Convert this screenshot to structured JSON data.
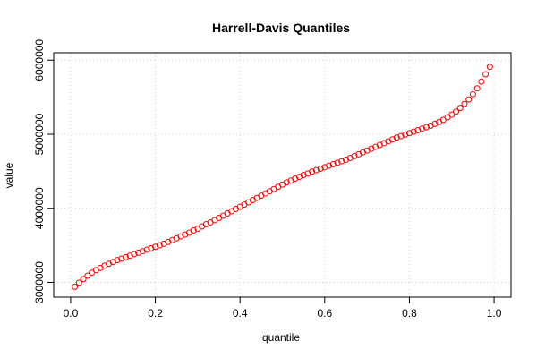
{
  "chart_data": {
    "type": "scatter",
    "title": "Harrell-Davis Quantiles",
    "xlabel": "quantile",
    "ylabel": "value",
    "xlim": [
      -0.04,
      1.04
    ],
    "ylim": [
      2800000,
      6100000
    ],
    "x_ticks": [
      0,
      0.2,
      0.4,
      0.6,
      0.8,
      1
    ],
    "x_tick_labels": [
      "0.0",
      "0.2",
      "0.4",
      "0.6",
      "0.8",
      "1.0"
    ],
    "y_ticks": [
      3000000,
      4000000,
      5000000,
      6000000
    ],
    "y_tick_labels": [
      "3000000",
      "4000000",
      "5000000",
      "6000000"
    ],
    "grid": true,
    "marker": "open-circle",
    "color": "#ff0000",
    "series": [
      {
        "x": [
          0.01,
          0.02,
          0.03,
          0.04,
          0.05,
          0.06,
          0.07,
          0.08,
          0.09,
          0.1,
          0.11,
          0.12,
          0.13,
          0.14,
          0.15,
          0.16,
          0.17,
          0.18,
          0.19,
          0.2,
          0.21,
          0.22,
          0.23,
          0.24,
          0.25,
          0.26,
          0.27,
          0.28,
          0.29,
          0.3,
          0.31,
          0.32,
          0.33,
          0.34,
          0.35,
          0.36,
          0.37,
          0.38,
          0.39,
          0.4,
          0.41,
          0.42,
          0.43,
          0.44,
          0.45,
          0.46,
          0.47,
          0.48,
          0.49,
          0.5,
          0.51,
          0.52,
          0.53,
          0.54,
          0.55,
          0.56,
          0.57,
          0.58,
          0.59,
          0.6,
          0.61,
          0.62,
          0.63,
          0.64,
          0.65,
          0.66,
          0.67,
          0.68,
          0.69,
          0.7,
          0.71,
          0.72,
          0.73,
          0.74,
          0.75,
          0.76,
          0.77,
          0.78,
          0.79,
          0.8,
          0.81,
          0.82,
          0.83,
          0.84,
          0.85,
          0.86,
          0.87,
          0.88,
          0.89,
          0.9,
          0.91,
          0.92,
          0.93,
          0.94,
          0.95,
          0.96,
          0.97,
          0.98,
          0.99
        ],
        "y": [
          2940000,
          2995000,
          3045000,
          3090000,
          3130000,
          3165000,
          3195000,
          3225000,
          3250000,
          3275000,
          3300000,
          3320000,
          3340000,
          3360000,
          3380000,
          3400000,
          3420000,
          3440000,
          3460000,
          3480000,
          3500000,
          3520000,
          3545000,
          3570000,
          3595000,
          3620000,
          3645000,
          3670000,
          3700000,
          3725000,
          3755000,
          3785000,
          3810000,
          3840000,
          3870000,
          3900000,
          3930000,
          3960000,
          3990000,
          4020000,
          4050000,
          4080000,
          4110000,
          4140000,
          4170000,
          4200000,
          4230000,
          4260000,
          4290000,
          4320000,
          4350000,
          4375000,
          4400000,
          4425000,
          4450000,
          4470000,
          4495000,
          4515000,
          4535000,
          4555000,
          4575000,
          4595000,
          4615000,
          4635000,
          4655000,
          4680000,
          4705000,
          4730000,
          4755000,
          4780000,
          4805000,
          4830000,
          4855000,
          4880000,
          4905000,
          4930000,
          4955000,
          4975000,
          4995000,
          5015000,
          5035000,
          5055000,
          5075000,
          5095000,
          5115000,
          5140000,
          5165000,
          5195000,
          5230000,
          5265000,
          5305000,
          5355000,
          5410000,
          5470000,
          5540000,
          5620000,
          5710000,
          5810000,
          5910000
        ]
      }
    ]
  }
}
